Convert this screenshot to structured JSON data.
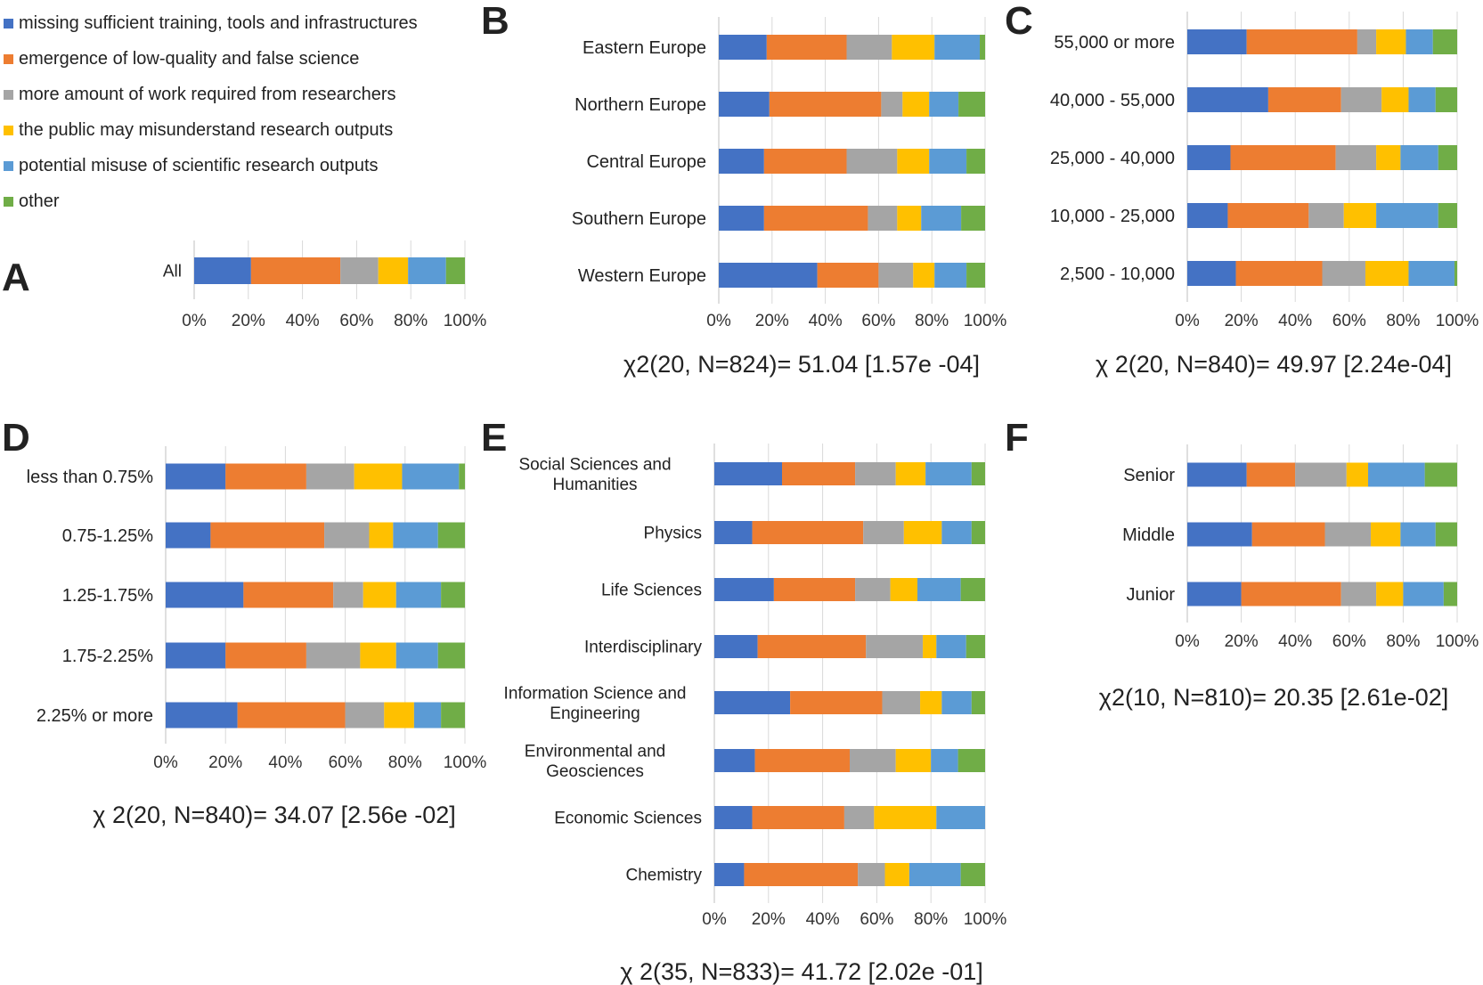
{
  "legend": {
    "items": [
      {
        "label": "missing sufficient training, tools and infrastructures",
        "color": "#4472C4"
      },
      {
        "label": "emergence of low-quality and false science",
        "color": "#ED7D31"
      },
      {
        "label": "more amount of work required from researchers",
        "color": "#A5A5A5"
      },
      {
        "label": "the public may misunderstand research outputs",
        "color": "#FFC000"
      },
      {
        "label": "potential misuse of scientific research outputs",
        "color": "#5B9BD5"
      },
      {
        "label": "other",
        "color": "#70AD47"
      }
    ]
  },
  "panels": {
    "A": {
      "letter": "A",
      "stat": ""
    },
    "B": {
      "letter": "B",
      "stat": "χ2(20, N=824)= 51.04 [1.57e -04]"
    },
    "C": {
      "letter": "C",
      "stat": "χ 2(20, N=840)=  49.97 [2.24e-04]"
    },
    "D": {
      "letter": "D",
      "stat": "χ 2(20, N=840)= 34.07 [2.56e -02]"
    },
    "E": {
      "letter": "E",
      "stat": "χ 2(35, N=833)= 41.72 [2.02e -01]"
    },
    "F": {
      "letter": "F",
      "stat": "χ2(10, N=810)= 20.35 [2.61e-02]"
    }
  },
  "chart_data": [
    {
      "panel": "A",
      "type": "bar",
      "orientation": "horizontal",
      "stacked": "percent",
      "categories": [
        "All"
      ],
      "xlim": [
        0,
        100
      ],
      "xticks": [
        "0%",
        "20%",
        "40%",
        "60%",
        "80%",
        "100%"
      ],
      "series": [
        {
          "name": "missing sufficient training, tools and infrastructures",
          "values": [
            21
          ]
        },
        {
          "name": "emergence of low-quality and false science",
          "values": [
            33
          ]
        },
        {
          "name": "more amount of work required from researchers",
          "values": [
            14
          ]
        },
        {
          "name": "the public may misunderstand research outputs",
          "values": [
            11
          ]
        },
        {
          "name": "potential misuse of scientific research outputs",
          "values": [
            14
          ]
        },
        {
          "name": "other",
          "values": [
            7
          ]
        }
      ]
    },
    {
      "panel": "B",
      "type": "bar",
      "orientation": "horizontal",
      "stacked": "percent",
      "categories": [
        "Eastern Europe",
        "Northern Europe",
        "Central Europe",
        "Southern Europe",
        "Western Europe"
      ],
      "xlim": [
        0,
        100
      ],
      "xticks": [
        "0%",
        "20%",
        "40%",
        "60%",
        "80%",
        "100%"
      ],
      "series": [
        {
          "name": "missing sufficient training, tools and infrastructures",
          "values": [
            18,
            19,
            17,
            17,
            37
          ]
        },
        {
          "name": "emergence of low-quality and false science",
          "values": [
            30,
            42,
            31,
            39,
            23
          ]
        },
        {
          "name": "more amount of work required from researchers",
          "values": [
            17,
            8,
            19,
            11,
            13
          ]
        },
        {
          "name": "the public may misunderstand research outputs",
          "values": [
            16,
            10,
            12,
            9,
            8
          ]
        },
        {
          "name": "potential misuse of scientific research outputs",
          "values": [
            17,
            11,
            14,
            15,
            12
          ]
        },
        {
          "name": "other",
          "values": [
            2,
            10,
            7,
            9,
            7
          ]
        }
      ]
    },
    {
      "panel": "C",
      "type": "bar",
      "orientation": "horizontal",
      "stacked": "percent",
      "categories": [
        "55,000 or more",
        "40,000 - 55,000",
        "25,000 - 40,000",
        "10,000 - 25,000",
        "2,500 - 10,000"
      ],
      "xlim": [
        0,
        100
      ],
      "xticks": [
        "0%",
        "20%",
        "40%",
        "60%",
        "80%",
        "100%"
      ],
      "series": [
        {
          "name": "missing sufficient training, tools and infrastructures",
          "values": [
            22,
            30,
            16,
            15,
            18
          ]
        },
        {
          "name": "emergence of low-quality and false science",
          "values": [
            41,
            27,
            39,
            30,
            32
          ]
        },
        {
          "name": "more amount of work required from researchers",
          "values": [
            7,
            15,
            15,
            13,
            16
          ]
        },
        {
          "name": "the public may misunderstand research outputs",
          "values": [
            11,
            10,
            9,
            12,
            16
          ]
        },
        {
          "name": "potential misuse of scientific research outputs",
          "values": [
            10,
            10,
            14,
            23,
            17
          ]
        },
        {
          "name": "other",
          "values": [
            9,
            8,
            7,
            7,
            1
          ]
        }
      ]
    },
    {
      "panel": "D",
      "type": "bar",
      "orientation": "horizontal",
      "stacked": "percent",
      "categories": [
        "less than 0.75%",
        "0.75-1.25%",
        "1.25-1.75%",
        "1.75-2.25%",
        "2.25% or more"
      ],
      "xlim": [
        0,
        100
      ],
      "xticks": [
        "0%",
        "20%",
        "40%",
        "60%",
        "80%",
        "100%"
      ],
      "series": [
        {
          "name": "missing sufficient training, tools and infrastructures",
          "values": [
            20,
            15,
            26,
            20,
            24
          ]
        },
        {
          "name": "emergence of low-quality and false science",
          "values": [
            27,
            38,
            30,
            27,
            36
          ]
        },
        {
          "name": "more amount of work required from researchers",
          "values": [
            16,
            15,
            10,
            18,
            13
          ]
        },
        {
          "name": "the public may misunderstand research outputs",
          "values": [
            16,
            8,
            11,
            12,
            10
          ]
        },
        {
          "name": "potential misuse of scientific research outputs",
          "values": [
            19,
            15,
            15,
            14,
            9
          ]
        },
        {
          "name": "other",
          "values": [
            2,
            9,
            8,
            9,
            8
          ]
        }
      ]
    },
    {
      "panel": "E",
      "type": "bar",
      "orientation": "horizontal",
      "stacked": "percent",
      "categories": [
        "Social Sciences and Humanities",
        "Physics",
        "Life Sciences",
        "Interdisciplinary",
        "Information Science and Engineering",
        "Environmental and Geosciences",
        "Economic Sciences",
        "Chemistry"
      ],
      "xlim": [
        0,
        100
      ],
      "xticks": [
        "0%",
        "20%",
        "40%",
        "60%",
        "80%",
        "100%"
      ],
      "series": [
        {
          "name": "missing sufficient training, tools and infrastructures",
          "values": [
            25,
            14,
            22,
            16,
            28,
            15,
            14,
            11
          ]
        },
        {
          "name": "emergence of low-quality and false science",
          "values": [
            27,
            41,
            30,
            40,
            34,
            35,
            34,
            42
          ]
        },
        {
          "name": "more amount of work required from researchers",
          "values": [
            15,
            15,
            13,
            21,
            14,
            17,
            11,
            10
          ]
        },
        {
          "name": "the public may misunderstand research outputs",
          "values": [
            11,
            14,
            10,
            5,
            8,
            13,
            23,
            9
          ]
        },
        {
          "name": "potential misuse of scientific research outputs",
          "values": [
            17,
            11,
            16,
            11,
            11,
            10,
            18,
            19
          ]
        },
        {
          "name": "other",
          "values": [
            5,
            5,
            9,
            7,
            5,
            10,
            0,
            9
          ]
        }
      ]
    },
    {
      "panel": "F",
      "type": "bar",
      "orientation": "horizontal",
      "stacked": "percent",
      "categories": [
        "Senior",
        "Middle",
        "Junior"
      ],
      "xlim": [
        0,
        100
      ],
      "xticks": [
        "0%",
        "20%",
        "40%",
        "60%",
        "80%",
        "100%"
      ],
      "series": [
        {
          "name": "missing sufficient training, tools and infrastructures",
          "values": [
            22,
            24,
            20
          ]
        },
        {
          "name": "emergence of low-quality and false science",
          "values": [
            18,
            27,
            37
          ]
        },
        {
          "name": "more amount of work required from researchers",
          "values": [
            19,
            17,
            13
          ]
        },
        {
          "name": "the public may misunderstand research outputs",
          "values": [
            8,
            11,
            10
          ]
        },
        {
          "name": "potential misuse of scientific research outputs",
          "values": [
            21,
            13,
            15
          ]
        },
        {
          "name": "other",
          "values": [
            12,
            8,
            5
          ]
        }
      ]
    }
  ]
}
